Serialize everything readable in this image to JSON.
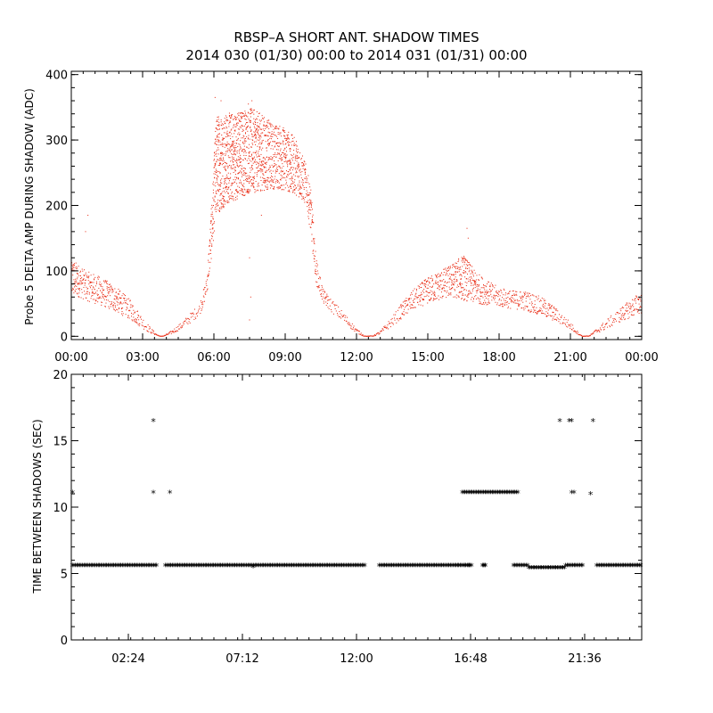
{
  "title": {
    "line1": "RBSP–A SHORT ANT. SHADOW TIMES",
    "line2": "2014 030 (01/30) 00:00 to 2014 031 (01/31) 00:00"
  },
  "colors": {
    "amp": "#e8240c",
    "stars": "#000000"
  },
  "chart_data": [
    {
      "type": "scatter",
      "id": "amp",
      "ylabel": "Probe 5 DELTA AMP DURING SHADOW (ADC)",
      "xlabel": "",
      "xlim": [
        0,
        24
      ],
      "ylim": [
        -5,
        405
      ],
      "x_ticks": [
        0,
        3,
        6,
        9,
        12,
        15,
        18,
        21,
        24
      ],
      "x_tick_labels": [
        "00:00",
        "03:00",
        "06:00",
        "09:00",
        "12:00",
        "15:00",
        "18:00",
        "21:00",
        "00:00"
      ],
      "y_ticks": [
        0,
        100,
        200,
        300,
        400
      ],
      "y_tick_labels": [
        "0",
        "100",
        "200",
        "300",
        "400"
      ],
      "envelope": {
        "x": [
          0.0,
          0.3,
          0.6,
          1.0,
          1.5,
          2.0,
          2.5,
          3.0,
          3.3,
          3.6,
          3.75,
          3.9,
          4.2,
          4.6,
          5.0,
          5.4,
          5.7,
          5.9,
          6.1,
          6.5,
          7.0,
          7.5,
          8.0,
          8.5,
          9.0,
          9.5,
          9.9,
          10.1,
          10.3,
          10.6,
          11.0,
          11.5,
          12.0,
          12.3,
          12.4,
          12.7,
          13.0,
          13.5,
          14.0,
          14.5,
          15.0,
          15.5,
          16.0,
          16.5,
          17.0,
          17.5,
          18.0,
          18.5,
          19.0,
          19.5,
          20.0,
          20.5,
          21.0,
          21.3,
          21.5,
          21.8,
          22.0,
          22.5,
          23.0,
          23.5,
          24.0
        ],
        "lower": [
          60,
          60,
          55,
          50,
          43,
          35,
          25,
          12,
          5,
          1,
          0,
          0,
          3,
          10,
          20,
          32,
          60,
          120,
          185,
          200,
          210,
          218,
          222,
          225,
          222,
          215,
          200,
          150,
          80,
          50,
          35,
          20,
          5,
          0,
          0,
          0,
          3,
          15,
          30,
          42,
          50,
          55,
          60,
          55,
          50,
          48,
          45,
          42,
          40,
          35,
          28,
          20,
          10,
          3,
          0,
          0,
          3,
          10,
          20,
          28,
          35
        ],
        "upper": [
          120,
          110,
          100,
          95,
          85,
          72,
          55,
          30,
          15,
          3,
          0,
          1,
          8,
          20,
          35,
          50,
          90,
          200,
          340,
          340,
          345,
          350,
          340,
          325,
          320,
          300,
          260,
          220,
          120,
          72,
          55,
          35,
          12,
          2,
          0,
          1,
          8,
          30,
          55,
          75,
          90,
          100,
          110,
          125,
          100,
          85,
          75,
          70,
          70,
          65,
          55,
          40,
          22,
          8,
          0,
          1,
          8,
          25,
          40,
          55,
          70
        ]
      },
      "outliers": [
        {
          "x": 0.7,
          "y": 185
        },
        {
          "x": 0.6,
          "y": 160
        },
        {
          "x": 16.65,
          "y": 165
        },
        {
          "x": 16.7,
          "y": 150
        },
        {
          "x": 6.05,
          "y": 365
        },
        {
          "x": 6.3,
          "y": 360
        },
        {
          "x": 7.6,
          "y": 360
        },
        {
          "x": 7.45,
          "y": 355
        },
        {
          "x": 8.0,
          "y": 185
        },
        {
          "x": 7.5,
          "y": 120
        },
        {
          "x": 7.55,
          "y": 60
        },
        {
          "x": 7.5,
          "y": 25
        }
      ]
    },
    {
      "type": "scatter",
      "id": "times",
      "ylabel": "TIME BETWEEN SHADOWS (SEC)",
      "xlabel": "",
      "xlim": [
        0,
        24
      ],
      "ylim": [
        0,
        20
      ],
      "x_ticks": [
        2.4,
        7.2,
        12.0,
        16.8,
        21.6
      ],
      "x_tick_labels": [
        "02:24",
        "07:12",
        "12:00",
        "16:48",
        "21:36"
      ],
      "y_ticks": [
        0,
        5,
        10,
        15,
        20
      ],
      "y_tick_labels": [
        "0",
        "5",
        "10",
        "15",
        "20"
      ],
      "marker": "*",
      "baseline_segments": [
        {
          "x0": 0.05,
          "x1": 3.6,
          "y": 5.5
        },
        {
          "x0": 3.95,
          "x1": 12.35,
          "y": 5.5
        },
        {
          "x0": 12.95,
          "x1": 16.25,
          "y": 5.5
        },
        {
          "x0": 16.3,
          "x1": 16.85,
          "y": 5.5
        },
        {
          "x0": 17.3,
          "x1": 17.45,
          "y": 5.5
        },
        {
          "x0": 18.6,
          "x1": 19.25,
          "y": 5.5
        },
        {
          "x0": 19.25,
          "x1": 20.8,
          "y": 5.35
        },
        {
          "x0": 20.8,
          "x1": 21.55,
          "y": 5.5
        },
        {
          "x0": 22.1,
          "x1": 24.0,
          "y": 5.5
        }
      ],
      "high_segments": [
        {
          "x0": 16.45,
          "x1": 18.8,
          "y": 11.0
        }
      ],
      "points": [
        {
          "x": 0.05,
          "y": 11.0
        },
        {
          "x": 3.45,
          "y": 16.4
        },
        {
          "x": 3.45,
          "y": 11.0
        },
        {
          "x": 4.15,
          "y": 11.0
        },
        {
          "x": 7.65,
          "y": 5.4
        },
        {
          "x": 16.55,
          "y": 5.5
        },
        {
          "x": 16.75,
          "y": 5.5
        },
        {
          "x": 17.35,
          "y": 5.5
        },
        {
          "x": 17.4,
          "y": 5.5
        },
        {
          "x": 20.55,
          "y": 16.4
        },
        {
          "x": 20.95,
          "y": 16.4
        },
        {
          "x": 21.05,
          "y": 16.4
        },
        {
          "x": 21.05,
          "y": 11.0
        },
        {
          "x": 21.15,
          "y": 11.0
        },
        {
          "x": 21.95,
          "y": 16.4
        },
        {
          "x": 21.85,
          "y": 10.9
        }
      ]
    }
  ]
}
